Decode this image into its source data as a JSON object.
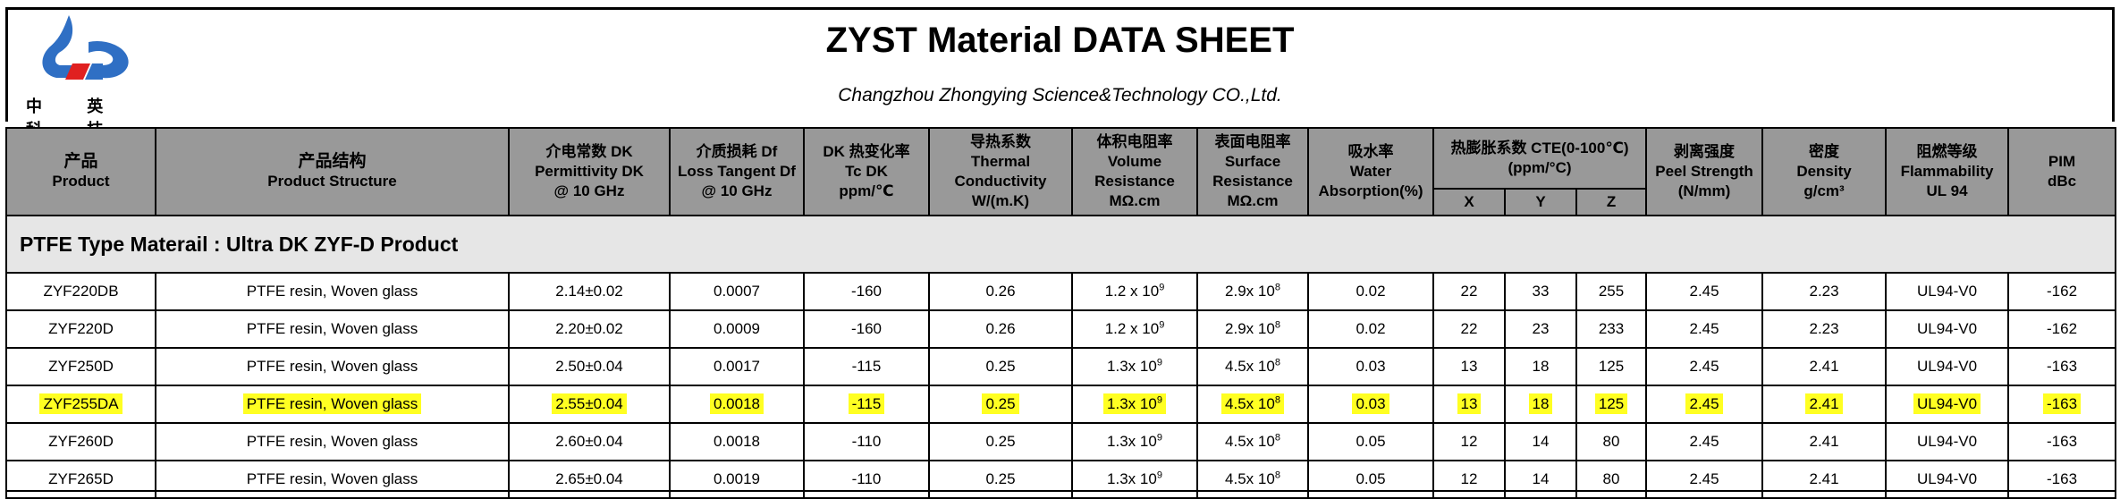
{
  "header": {
    "title": "ZYST Material DATA SHEET",
    "subtitle": "Changzhou Zhongying Science&Technology CO.,Ltd.",
    "logo_text": "中 英 科 技",
    "logo_icon": "company-logo"
  },
  "columns": {
    "product": {
      "zh": "产品",
      "en": "Product"
    },
    "structure": {
      "zh": "产品结构",
      "en": "Product Structure"
    },
    "dk": {
      "l1": "介电常数 DK",
      "l2": "Permittivity DK",
      "l3": "@ 10 GHz"
    },
    "df": {
      "l1": "介质损耗 Df",
      "l2": "Loss Tangent Df",
      "l3": "@ 10 GHz"
    },
    "tcdk": {
      "l1": "DK 热变化率",
      "l2": "Tc DK",
      "l3": "ppm/℃"
    },
    "thermal": {
      "l1": "导热系数",
      "l2": "Thermal",
      "l3": "Conductivity",
      "l4": "W/(m.K)"
    },
    "volume": {
      "l1": "体积电阻率",
      "l2": "Volume",
      "l3": "Resistance",
      "l4": "MΩ.cm"
    },
    "surface": {
      "l1": "表面电阻率",
      "l2": "Surface",
      "l3": "Resistance",
      "l4": "MΩ.cm"
    },
    "water": {
      "l1": "吸水率",
      "l2": "Water",
      "l3": "Absorption(%)"
    },
    "cte": {
      "l1": "热膨胀系数 CTE(0-100℃)",
      "l2": "(ppm/°C)",
      "x": "X",
      "y": "Y",
      "z": "Z"
    },
    "peel": {
      "l1": "剥离强度",
      "l2": "Peel Strength",
      "l3": "(N/mm)"
    },
    "density": {
      "l1": "密度",
      "l2": "Density",
      "l3": "g/cm³"
    },
    "flame": {
      "l1": "阻燃等级",
      "l2": "Flammability",
      "l3": "UL 94"
    },
    "pim": {
      "l1": "PIM",
      "l2": "dBc"
    }
  },
  "section_title": "PTFE Type Materail : Ultra DK  ZYF-D Product",
  "rows": [
    {
      "product": "ZYF220DB",
      "structure": "PTFE resin, Woven glass",
      "dk": "2.14±0.02",
      "df": "0.0007",
      "tcdk": "-160",
      "thermal": "0.26",
      "vol_base": "1.2 x 10",
      "vol_exp": "9",
      "surf_base": "2.9x 10",
      "surf_exp": "8",
      "water": "0.02",
      "x": "22",
      "y": "33",
      "z": "255",
      "peel": "2.45",
      "density": "2.23",
      "flame": "UL94-V0",
      "pim": "-162"
    },
    {
      "product": "ZYF220D",
      "structure": "PTFE resin, Woven glass",
      "dk": "2.20±0.02",
      "df": "0.0009",
      "tcdk": "-160",
      "thermal": "0.26",
      "vol_base": "1.2 x 10",
      "vol_exp": "9",
      "surf_base": "2.9x 10",
      "surf_exp": "8",
      "water": "0.02",
      "x": "22",
      "y": "23",
      "z": "233",
      "peel": "2.45",
      "density": "2.23",
      "flame": "UL94-V0",
      "pim": "-162"
    },
    {
      "product": "ZYF250D",
      "structure": "PTFE resin, Woven glass",
      "dk": "2.50±0.04",
      "df": "0.0017",
      "tcdk": "-115",
      "thermal": "0.25",
      "vol_base": "1.3x 10",
      "vol_exp": "9",
      "surf_base": "4.5x 10",
      "surf_exp": "8",
      "water": "0.03",
      "x": "13",
      "y": "18",
      "z": "125",
      "peel": "2.45",
      "density": "2.41",
      "flame": "UL94-V0",
      "pim": "-163"
    },
    {
      "product": "ZYF255DA",
      "structure": "PTFE resin, Woven glass",
      "dk": "2.55±0.04",
      "df": "0.0018",
      "tcdk": "-115",
      "thermal": "0.25",
      "vol_base": "1.3x 10",
      "vol_exp": "9",
      "surf_base": "4.5x 10",
      "surf_exp": "8",
      "water": "0.03",
      "x": "13",
      "y": "18",
      "z": "125",
      "peel": "2.45",
      "density": "2.41",
      "flame": "UL94-V0",
      "pim": "-163"
    },
    {
      "product": "ZYF260D",
      "structure": "PTFE resin, Woven glass",
      "dk": "2.60±0.04",
      "df": "0.0018",
      "tcdk": "-110",
      "thermal": "0.25",
      "vol_base": "1.3x 10",
      "vol_exp": "9",
      "surf_base": "4.5x 10",
      "surf_exp": "8",
      "water": "0.05",
      "x": "12",
      "y": "14",
      "z": "80",
      "peel": "2.45",
      "density": "2.41",
      "flame": "UL94-V0",
      "pim": "-163"
    },
    {
      "product": "ZYF265D",
      "structure": "PTFE resin, Woven glass",
      "dk": "2.65±0.04",
      "df": "0.0019",
      "tcdk": "-110",
      "thermal": "0.25",
      "vol_base": "1.3x 10",
      "vol_exp": "9",
      "surf_base": "4.5x 10",
      "surf_exp": "8",
      "water": "0.05",
      "x": "12",
      "y": "14",
      "z": "80",
      "peel": "2.45",
      "density": "2.41",
      "flame": "UL94-V0",
      "pim": "-163"
    }
  ],
  "highlight": {
    "row_product": "ZYF255DA",
    "color": "#ffff22"
  },
  "colors": {
    "header_bg": "#999999",
    "section_bg": "#e6e6e6",
    "logo_blue": "#2f6fc4",
    "logo_red": "#e02020"
  }
}
